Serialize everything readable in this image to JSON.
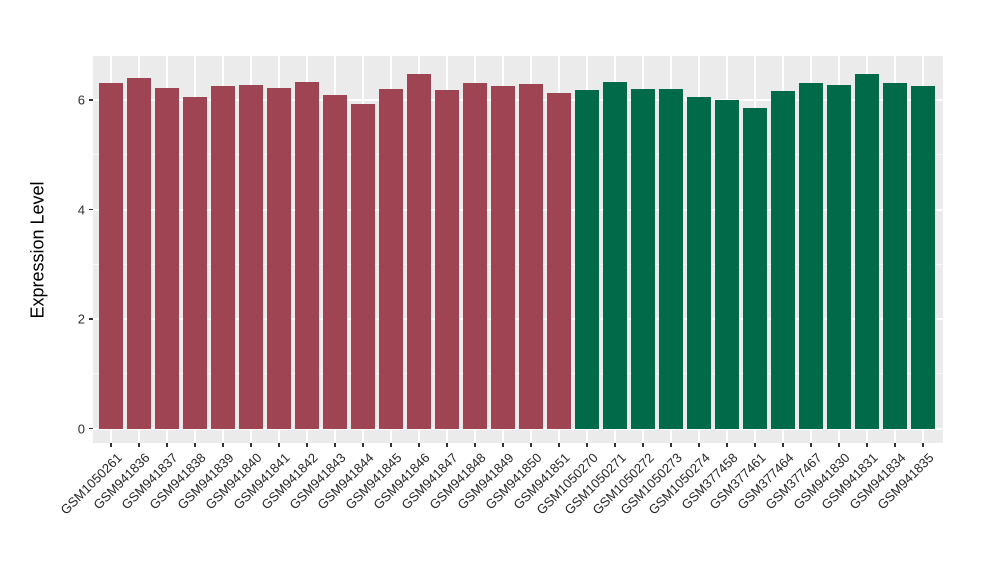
{
  "chart_data": {
    "type": "bar",
    "title": "",
    "xlabel": "",
    "ylabel": "Expression Level",
    "ylim": [
      0,
      6.8
    ],
    "yticks": [
      0,
      2,
      4,
      6
    ],
    "grid": true,
    "legend": "none",
    "panel_bg": "#EBEBEB",
    "gridline_color": "#FFFFFF",
    "colors": {
      "group_a": "#9E4452",
      "group_b": "#016A48"
    },
    "bars": [
      {
        "label": "GSM1050261",
        "value": 6.31,
        "group": "group_a"
      },
      {
        "label": "GSM941836",
        "value": 6.41,
        "group": "group_a"
      },
      {
        "label": "GSM941837",
        "value": 6.22,
        "group": "group_a"
      },
      {
        "label": "GSM941838",
        "value": 6.06,
        "group": "group_a"
      },
      {
        "label": "GSM941839",
        "value": 6.26,
        "group": "group_a"
      },
      {
        "label": "GSM941840",
        "value": 6.28,
        "group": "group_a"
      },
      {
        "label": "GSM941841",
        "value": 6.22,
        "group": "group_a"
      },
      {
        "label": "GSM941842",
        "value": 6.33,
        "group": "group_a"
      },
      {
        "label": "GSM941843",
        "value": 6.09,
        "group": "group_a"
      },
      {
        "label": "GSM941844",
        "value": 5.93,
        "group": "group_a"
      },
      {
        "label": "GSM941845",
        "value": 6.2,
        "group": "group_a"
      },
      {
        "label": "GSM941846",
        "value": 6.48,
        "group": "group_a"
      },
      {
        "label": "GSM941847",
        "value": 6.19,
        "group": "group_a"
      },
      {
        "label": "GSM941848",
        "value": 6.31,
        "group": "group_a"
      },
      {
        "label": "GSM941849",
        "value": 6.26,
        "group": "group_a"
      },
      {
        "label": "GSM941850",
        "value": 6.3,
        "group": "group_a"
      },
      {
        "label": "GSM941851",
        "value": 6.13,
        "group": "group_a"
      },
      {
        "label": "GSM1050270",
        "value": 6.19,
        "group": "group_b"
      },
      {
        "label": "GSM1050271",
        "value": 6.34,
        "group": "group_b"
      },
      {
        "label": "GSM1050272",
        "value": 6.2,
        "group": "group_b"
      },
      {
        "label": "GSM1050273",
        "value": 6.2,
        "group": "group_b"
      },
      {
        "label": "GSM1050274",
        "value": 6.06,
        "group": "group_b"
      },
      {
        "label": "GSM377458",
        "value": 6.0,
        "group": "group_b"
      },
      {
        "label": "GSM377461",
        "value": 5.86,
        "group": "group_b"
      },
      {
        "label": "GSM377464",
        "value": 6.17,
        "group": "group_b"
      },
      {
        "label": "GSM377467",
        "value": 6.31,
        "group": "group_b"
      },
      {
        "label": "GSM941830",
        "value": 6.27,
        "group": "group_b"
      },
      {
        "label": "GSM941831",
        "value": 6.47,
        "group": "group_b"
      },
      {
        "label": "GSM941834",
        "value": 6.31,
        "group": "group_b"
      },
      {
        "label": "GSM941835",
        "value": 6.26,
        "group": "group_b"
      }
    ]
  }
}
